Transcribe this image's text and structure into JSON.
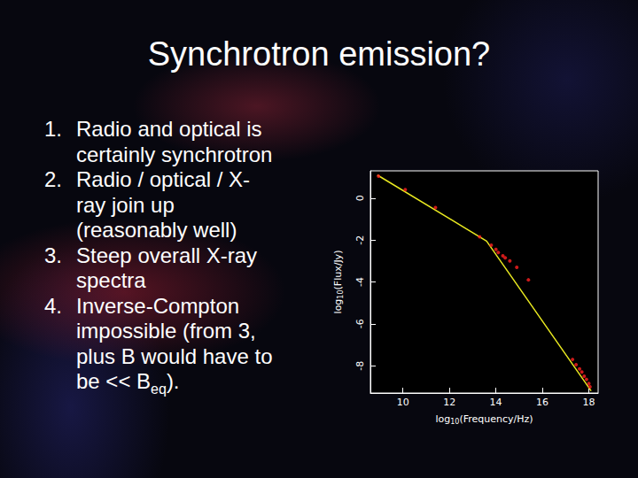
{
  "slide": {
    "title": "Synchrotron emission?",
    "bullets": [
      {
        "number": "1.",
        "lines": [
          "Radio and optical is",
          "certainly synchrotron"
        ]
      },
      {
        "number": "2.",
        "lines": [
          "Radio / optical / X-",
          "ray join up",
          "(reasonably well)"
        ]
      },
      {
        "number": "3.",
        "lines": [
          "Steep overall X-ray",
          "spectra"
        ]
      },
      {
        "number": "4.",
        "lines": [
          "Inverse-Compton",
          "impossible (from 3,",
          "plus B would have to",
          {
            "text": "be << B",
            "sub": "eq",
            "tail": ")."
          }
        ]
      }
    ]
  },
  "chart_data": {
    "type": "scatter",
    "x_label": {
      "text": "log",
      "sub": "10",
      "tail": "(Frequency/Hz)"
    },
    "y_label": {
      "text": "log",
      "sub": "10",
      "tail": "(Flux/Jy)"
    },
    "xlim": [
      8.6,
      18.4
    ],
    "xticks": [
      10,
      12,
      14,
      16,
      18
    ],
    "ylim": [
      -9.3,
      1.3
    ],
    "yticks": [
      0,
      -2,
      -4,
      -6,
      -8
    ],
    "grid": false,
    "series": [
      {
        "type": "line",
        "color": "#e8e820",
        "line_style": "solid",
        "x": [
          8.9,
          13.6,
          18.1
        ],
        "values": [
          1.1,
          -2.05,
          -9.2
        ]
      },
      {
        "type": "scatter",
        "color": "#ff2020",
        "marker": "circle",
        "x": [
          8.95,
          10.1,
          11.4,
          13.3,
          13.8,
          14.0,
          14.1,
          14.3,
          14.4,
          14.6,
          14.9,
          15.4,
          17.3,
          17.45,
          17.6,
          17.7,
          17.8,
          17.9,
          18.0,
          18.05
        ],
        "values": [
          1.05,
          0.4,
          -0.45,
          -1.85,
          -2.25,
          -2.45,
          -2.6,
          -2.75,
          -2.85,
          -3.0,
          -3.3,
          -3.9,
          -7.7,
          -7.95,
          -8.15,
          -8.3,
          -8.5,
          -8.65,
          -8.85,
          -9.0
        ]
      }
    ]
  }
}
